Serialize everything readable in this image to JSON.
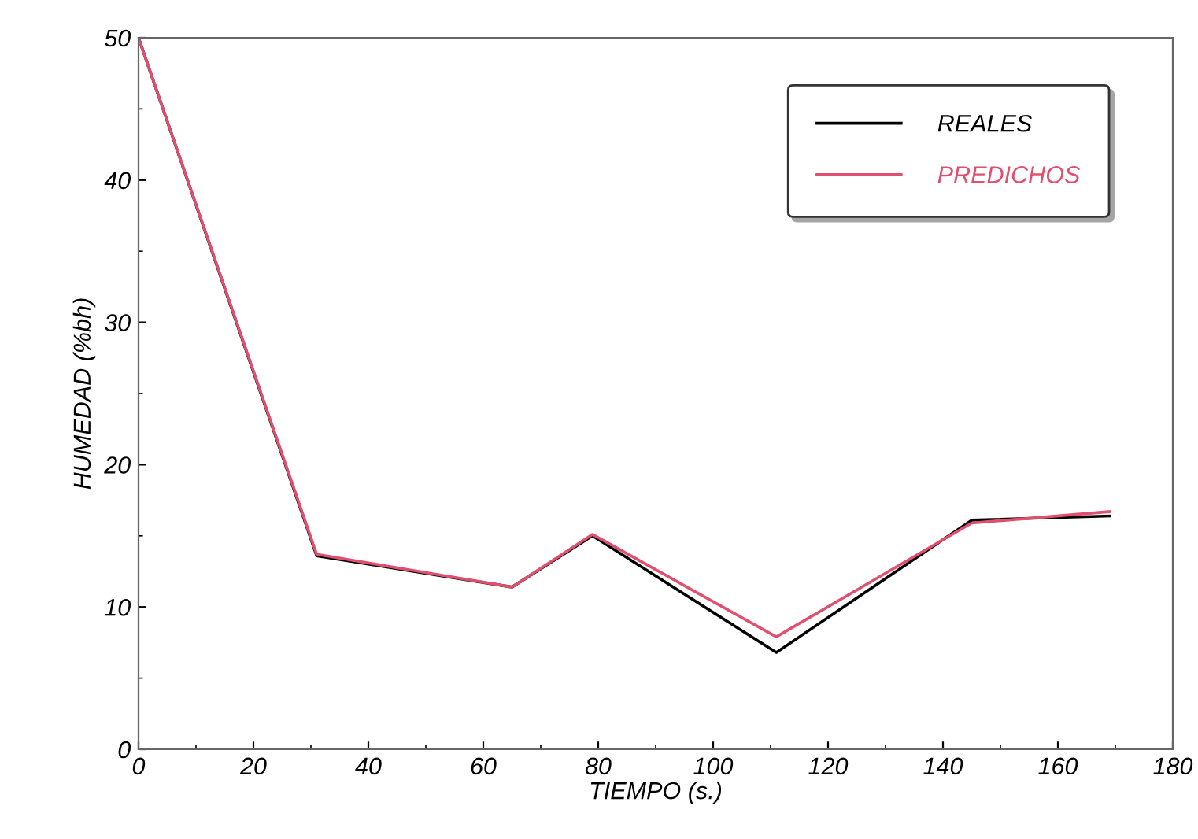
{
  "chart_data": {
    "type": "line",
    "xlabel": "TIEMPO (s.)",
    "ylabel": "HUMEDAD (%bh)",
    "xlim": [
      0,
      180
    ],
    "xticks": [
      0,
      20,
      40,
      60,
      80,
      100,
      120,
      140,
      160,
      180
    ],
    "ylim": [
      0,
      50
    ],
    "yticks": [
      0,
      10,
      20,
      30,
      40,
      50
    ],
    "x": [
      0,
      31,
      65,
      79,
      111,
      145,
      169
    ],
    "series": [
      {
        "name": "REALES",
        "color": "#000000",
        "values": [
          50,
          13.6,
          11.4,
          15,
          6.8,
          16.1,
          16.4
        ]
      },
      {
        "name": "PREDICHOS",
        "color": "#e0506e",
        "values": [
          50,
          13.7,
          11.4,
          15.1,
          7.9,
          15.9,
          16.7
        ]
      }
    ],
    "legend": "top right",
    "grid": false,
    "marker": "none",
    "line_style": "solid"
  }
}
